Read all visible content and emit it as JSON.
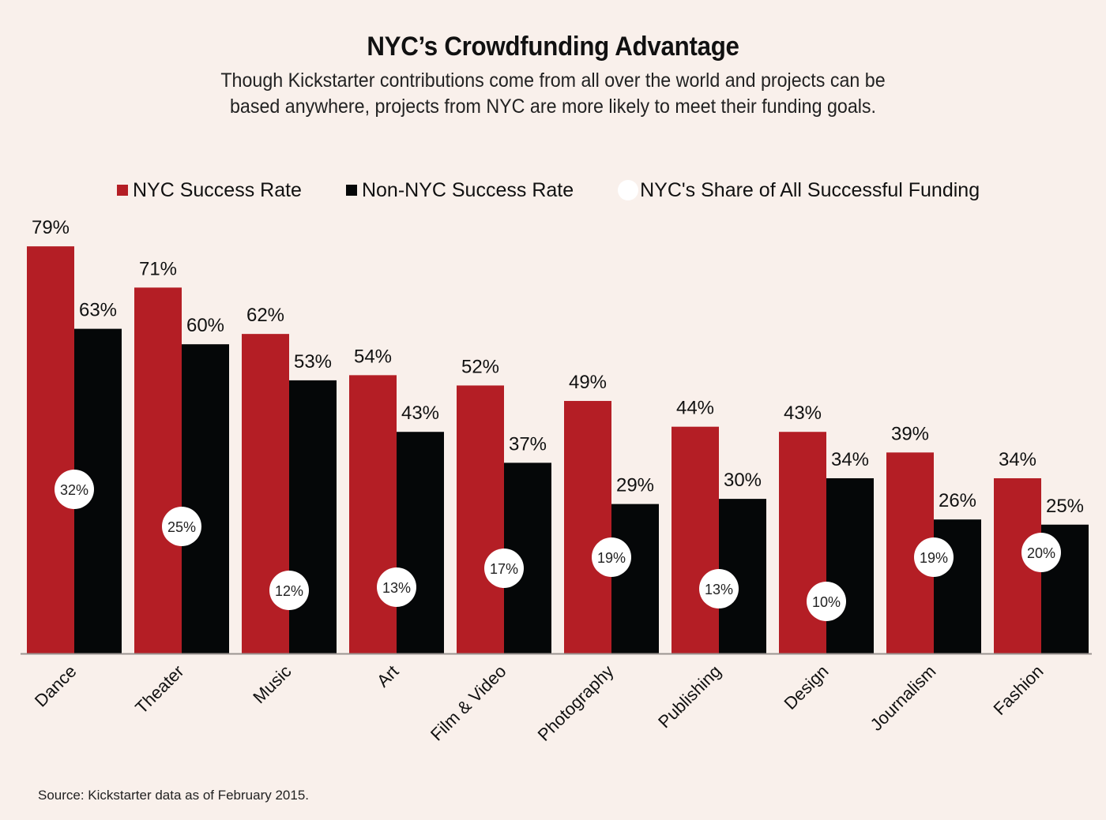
{
  "title": "NYC’s Crowdfunding Advantage",
  "subtitle_line1": "Though Kickstarter contributions come from all over the world and projects can be",
  "subtitle_line2": "based anywhere, projects from NYC are more likely to meet their funding goals.",
  "source": "Source: Kickstarter data as of February 2015.",
  "colors": {
    "nyc": "#b41e25",
    "non_nyc": "#050708",
    "share": "#ffffff",
    "background": "#f9f0eb"
  },
  "chart_data": {
    "type": "bar",
    "title": "NYC’s Crowdfunding Advantage",
    "xlabel": "",
    "ylabel": "",
    "ylim": [
      0,
      80
    ],
    "grid": false,
    "legend_position": "top",
    "categories": [
      "Dance",
      "Theater",
      "Music",
      "Art",
      "Film & Video",
      "Photography",
      "Publishing",
      "Design",
      "Journalism",
      "Fashion"
    ],
    "series": [
      {
        "name": "NYC Success Rate",
        "marker": "square",
        "values": [
          79,
          71,
          62,
          54,
          52,
          49,
          44,
          43,
          39,
          34
        ]
      },
      {
        "name": "Non-NYC Success Rate",
        "marker": "square",
        "values": [
          63,
          60,
          53,
          43,
          37,
          29,
          30,
          34,
          26,
          25
        ]
      },
      {
        "name": "NYC's Share of All Successful Funding",
        "marker": "circle",
        "values": [
          32,
          25,
          12,
          13,
          17,
          19,
          13,
          10,
          19,
          20
        ]
      }
    ],
    "value_suffix": "%"
  }
}
